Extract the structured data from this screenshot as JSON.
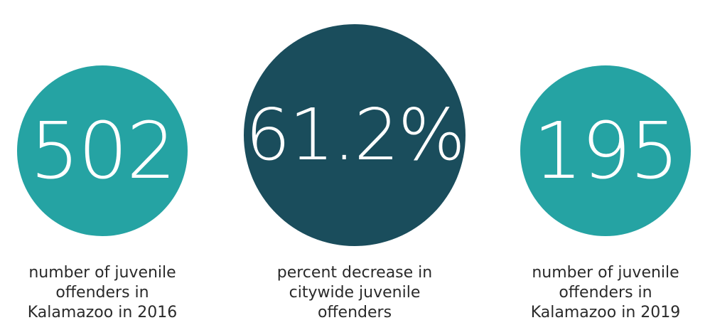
{
  "colors": {
    "teal": "#25a3a3",
    "dark_teal": "#1a4d5c",
    "text": "#2a2a2a"
  },
  "stats": [
    {
      "value": "502",
      "label": "number of juvenile\noffenders in\nKalamazoo in 2016",
      "color": "#25a3a3"
    },
    {
      "value": "61.2%",
      "label": "percent decrease in\ncitywide juvenile\noffenders",
      "color": "#1a4d5c"
    },
    {
      "value": "195",
      "label": "number of juvenile\noffenders in\nKalamazoo in 2019",
      "color": "#25a3a3"
    }
  ]
}
